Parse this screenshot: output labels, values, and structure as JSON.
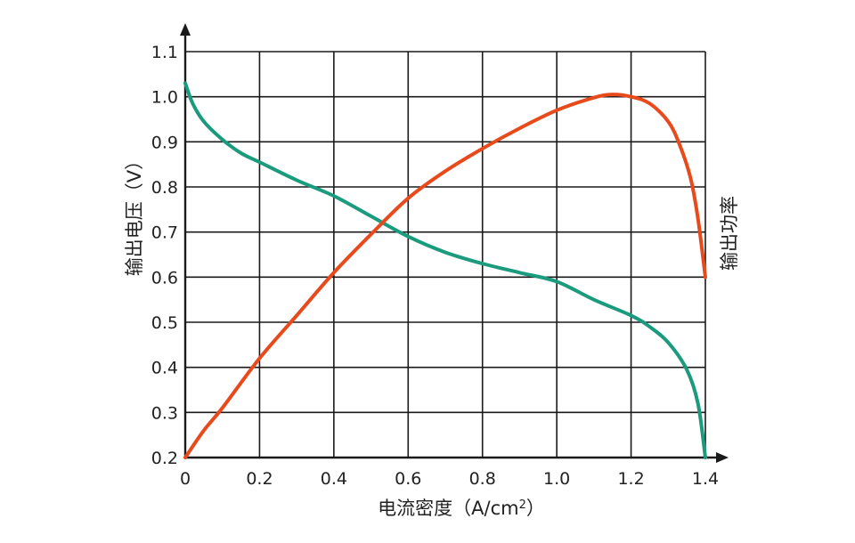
{
  "chart_data": {
    "type": "line",
    "title": "",
    "xlabel_main": "电流密度（A/cm",
    "xlabel_sup": "2",
    "xlabel_end": "）",
    "ylabel": "输出电压（V）",
    "y2label": "输出功率",
    "xlim": [
      0,
      1.4
    ],
    "ylim": [
      0.2,
      1.1
    ],
    "grid": true,
    "x_ticks": [
      "0",
      "0.2",
      "0.4",
      "0.6",
      "0.8",
      "1.0",
      "1.2",
      "1.4"
    ],
    "y_ticks": [
      "0.2",
      "0.3",
      "0.4",
      "0.5",
      "0.6",
      "0.7",
      "0.8",
      "0.9",
      "1.0",
      "1.1"
    ],
    "series": [
      {
        "color": "#1a9b7e",
        "x": [
          0,
          0.02,
          0.05,
          0.1,
          0.15,
          0.2,
          0.3,
          0.4,
          0.5,
          0.6,
          0.7,
          0.8,
          0.9,
          1.0,
          1.1,
          1.2,
          1.25,
          1.3,
          1.35,
          1.38,
          1.4
        ],
        "y": [
          1.03,
          0.985,
          0.945,
          0.905,
          0.875,
          0.855,
          0.815,
          0.78,
          0.735,
          0.69,
          0.655,
          0.63,
          0.61,
          0.59,
          0.55,
          0.515,
          0.49,
          0.455,
          0.395,
          0.32,
          0.2
        ]
      },
      {
        "color": "#e84a1c",
        "x": [
          0,
          0.05,
          0.1,
          0.2,
          0.3,
          0.4,
          0.5,
          0.6,
          0.7,
          0.8,
          0.9,
          1.0,
          1.1,
          1.15,
          1.2,
          1.25,
          1.3,
          1.33,
          1.36,
          1.38,
          1.4
        ],
        "y": [
          0.2,
          0.26,
          0.31,
          0.42,
          0.515,
          0.61,
          0.695,
          0.775,
          0.835,
          0.885,
          0.93,
          0.97,
          0.998,
          1.005,
          1.0,
          0.985,
          0.945,
          0.895,
          0.82,
          0.73,
          0.6
        ]
      }
    ]
  }
}
